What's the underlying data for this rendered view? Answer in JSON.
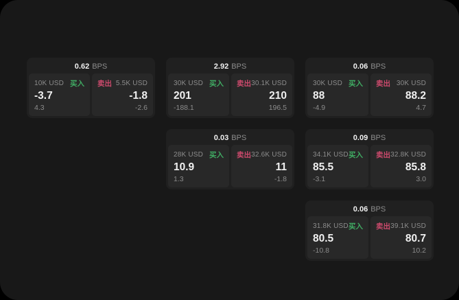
{
  "theme": {
    "frame_bg": "#181818",
    "card_bg": "#202020",
    "panel_bg": "#282828",
    "text_primary": "#f0f0f0",
    "text_secondary": "#8c8c8c",
    "buy_color": "#40ab63",
    "sell_color": "#cb4a6c"
  },
  "labels": {
    "bps_unit": "BPS",
    "buy": "买入",
    "sell": "卖出"
  },
  "cards": [
    {
      "bps": "0.62",
      "col": 1,
      "row": 1,
      "buy": {
        "amount": "10K USD",
        "value": "-3.7",
        "delta": "4.3"
      },
      "sell": {
        "amount": "5.5K USD",
        "value": "-1.8",
        "delta": "-2.6"
      }
    },
    {
      "bps": "2.92",
      "col": 2,
      "row": 1,
      "buy": {
        "amount": "30K USD",
        "value": "201",
        "delta": "-188.1"
      },
      "sell": {
        "amount": "30.1K USD",
        "value": "210",
        "delta": "196.5"
      }
    },
    {
      "bps": "0.06",
      "col": 3,
      "row": 1,
      "buy": {
        "amount": "30K USD",
        "value": "88",
        "delta": "-4.9"
      },
      "sell": {
        "amount": "30K USD",
        "value": "88.2",
        "delta": "4.7"
      }
    },
    {
      "bps": "0.03",
      "col": 2,
      "row": 2,
      "buy": {
        "amount": "28K USD",
        "value": "10.9",
        "delta": "1.3"
      },
      "sell": {
        "amount": "32.6K USD",
        "value": "11",
        "delta": "-1.8"
      }
    },
    {
      "bps": "0.09",
      "col": 3,
      "row": 2,
      "buy": {
        "amount": "34.1K USD",
        "value": "85.5",
        "delta": "-3.1"
      },
      "sell": {
        "amount": "32.8K USD",
        "value": "85.8",
        "delta": "3.0"
      }
    },
    {
      "bps": "0.06",
      "col": 3,
      "row": 3,
      "buy": {
        "amount": "31.8K USD",
        "value": "80.5",
        "delta": "-10.8"
      },
      "sell": {
        "amount": "39.1K USD",
        "value": "80.7",
        "delta": "10.2"
      }
    }
  ]
}
